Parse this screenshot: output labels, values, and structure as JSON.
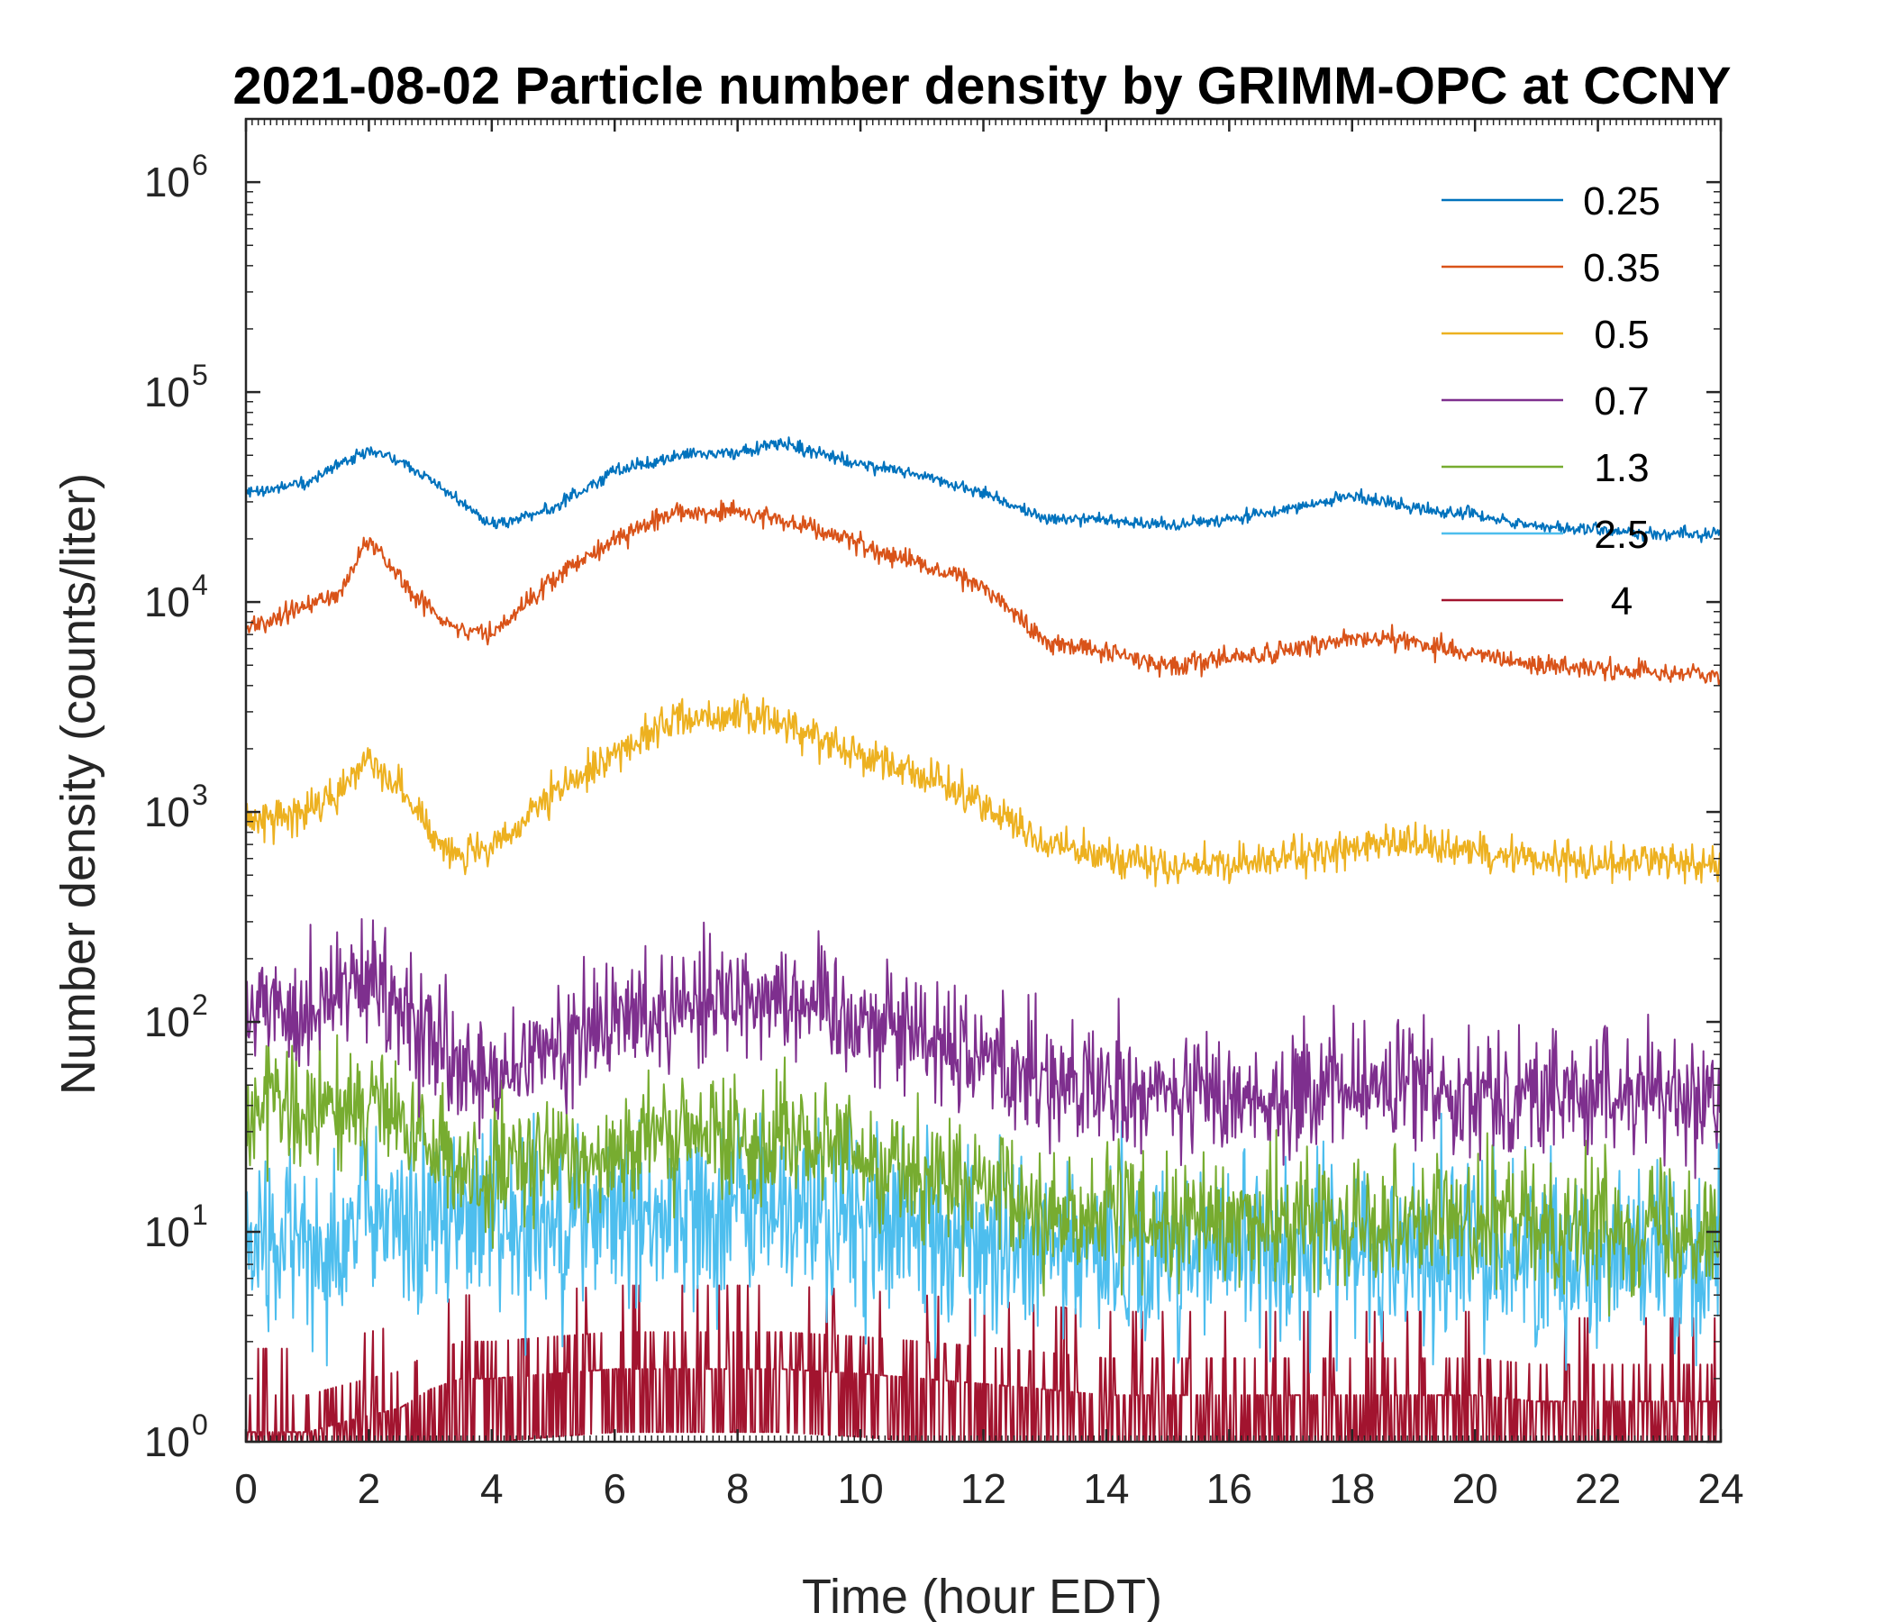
{
  "chart_data": {
    "type": "line",
    "title": "2021-08-02 Particle number density by GRIMM-OPC at CCNY",
    "xlabel": "Time (hour EDT)",
    "ylabel": "Number density (counts/liter)",
    "xlim": [
      0,
      24
    ],
    "ylim": [
      1,
      2000000
    ],
    "yscale": "log",
    "x_ticks": [
      "0",
      "2",
      "4",
      "6",
      "8",
      "10",
      "12",
      "14",
      "16",
      "18",
      "20",
      "22",
      "24"
    ],
    "y_ticks": [
      {
        "base": "10",
        "exp": "0"
      },
      {
        "base": "10",
        "exp": "1"
      },
      {
        "base": "10",
        "exp": "2"
      },
      {
        "base": "10",
        "exp": "3"
      },
      {
        "base": "10",
        "exp": "4"
      },
      {
        "base": "10",
        "exp": "5"
      },
      {
        "base": "10",
        "exp": "6"
      }
    ],
    "legend_position": "top-right",
    "x": [
      0,
      1,
      1.5,
      2,
      2.5,
      3,
      3.5,
      4,
      5,
      6,
      7,
      8,
      8.7,
      10,
      11,
      12,
      13,
      14,
      15,
      16,
      17,
      18,
      19,
      20,
      21,
      22,
      23,
      24
    ],
    "series": [
      {
        "name": "0.25",
        "color": "#0072BD",
        "noise": 0.03,
        "values": [
          33000,
          37000,
          45000,
          53000,
          47000,
          38000,
          30000,
          23000,
          28000,
          42000,
          50000,
          52000,
          57000,
          45000,
          40000,
          33000,
          25000,
          25000,
          23000,
          25000,
          28000,
          32000,
          28000,
          26000,
          23000,
          22000,
          21000,
          21000
        ]
      },
      {
        "name": "0.35",
        "color": "#D95319",
        "noise": 0.05,
        "values": [
          7500,
          9500,
          11000,
          20000,
          13000,
          9000,
          7500,
          7000,
          13000,
          20000,
          27000,
          27000,
          25000,
          19000,
          15000,
          12000,
          6500,
          5800,
          5000,
          5400,
          5800,
          6800,
          6600,
          5500,
          5000,
          4800,
          4600,
          4400
        ]
      },
      {
        "name": "0.5",
        "color": "#EDB120",
        "noise": 0.09,
        "values": [
          900,
          1000,
          1200,
          1900,
          1300,
          800,
          620,
          650,
          1200,
          1900,
          2800,
          2900,
          2700,
          1900,
          1500,
          1100,
          700,
          620,
          550,
          560,
          600,
          680,
          700,
          660,
          600,
          580,
          580,
          560
        ]
      },
      {
        "name": "0.7",
        "color": "#7E2F8E",
        "noise": 0.3,
        "values": [
          110,
          120,
          140,
          150,
          110,
          80,
          55,
          50,
          75,
          100,
          125,
          135,
          140,
          105,
          90,
          70,
          55,
          45,
          45,
          45,
          45,
          48,
          50,
          48,
          45,
          45,
          45,
          45
        ]
      },
      {
        "name": "1.3",
        "color": "#77AC30",
        "noise": 0.3,
        "values": [
          40,
          35,
          38,
          45,
          32,
          25,
          20,
          18,
          22,
          25,
          28,
          28,
          30,
          22,
          20,
          15,
          12,
          12,
          11,
          11,
          11,
          12,
          12,
          11,
          11,
          11,
          11,
          11
        ]
      },
      {
        "name": "2.5",
        "color": "#4DBEEE",
        "noise": 0.45,
        "values": [
          8,
          9,
          10,
          12,
          11,
          11,
          12,
          12,
          12,
          12,
          13,
          13,
          13,
          11,
          10,
          9,
          8,
          8,
          8,
          8,
          8,
          8,
          8,
          8,
          8,
          8,
          8,
          8
        ]
      },
      {
        "name": "4",
        "color": "#A2142F",
        "noise": 0.7,
        "values": [
          1,
          1,
          1.1,
          1.2,
          1.3,
          1.6,
          1.8,
          1.8,
          1.9,
          2,
          2,
          2,
          2,
          1.9,
          1.8,
          1.7,
          1.6,
          1.5,
          1.5,
          1.5,
          1.5,
          1.5,
          1.5,
          1.5,
          1.4,
          1.4,
          1.4,
          1.4
        ]
      }
    ]
  }
}
